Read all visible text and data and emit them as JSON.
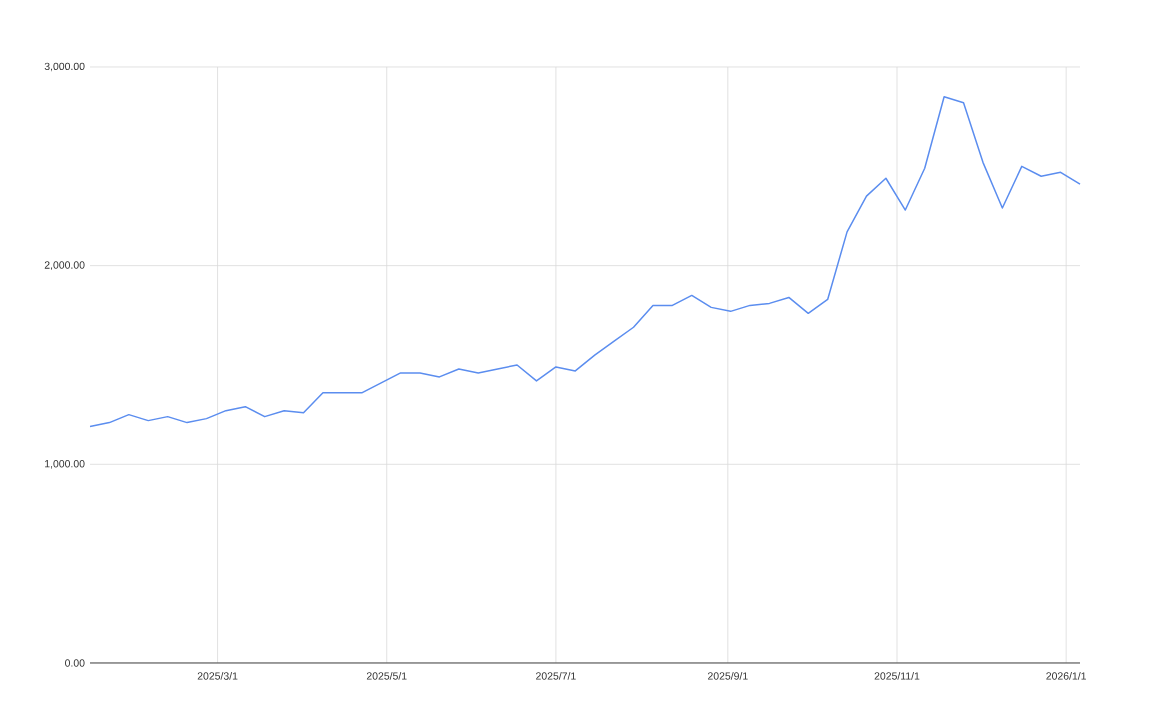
{
  "chart_data": {
    "type": "line",
    "x": [
      "2025-01-14",
      "2025-01-21",
      "2025-01-28",
      "2025-02-04",
      "2025-02-11",
      "2025-02-18",
      "2025-02-25",
      "2025-03-04",
      "2025-03-11",
      "2025-03-18",
      "2025-03-25",
      "2025-04-01",
      "2025-04-08",
      "2025-04-15",
      "2025-04-22",
      "2025-04-29",
      "2025-05-06",
      "2025-05-13",
      "2025-05-20",
      "2025-05-27",
      "2025-06-03",
      "2025-06-10",
      "2025-06-17",
      "2025-06-24",
      "2025-07-01",
      "2025-07-08",
      "2025-07-15",
      "2025-07-22",
      "2025-07-29",
      "2025-08-05",
      "2025-08-12",
      "2025-08-19",
      "2025-08-26",
      "2025-09-02",
      "2025-09-09",
      "2025-09-16",
      "2025-09-23",
      "2025-09-30",
      "2025-10-07",
      "2025-10-14",
      "2025-10-21",
      "2025-10-28",
      "2025-11-04",
      "2025-11-11",
      "2025-11-18",
      "2025-11-25",
      "2025-12-02",
      "2025-12-09",
      "2025-12-16",
      "2025-12-23",
      "2025-12-30",
      "2026-01-06"
    ],
    "series": [
      {
        "color": "#5b8def",
        "values": [
          1190,
          1210,
          1250,
          1220,
          1240,
          1210,
          1230,
          1270,
          1290,
          1240,
          1270,
          1260,
          1360,
          1360,
          1360,
          1410,
          1460,
          1460,
          1440,
          1480,
          1460,
          1480,
          1500,
          1420,
          1490,
          1470,
          1550,
          1620,
          1690,
          1800,
          1800,
          1850,
          1790,
          1770,
          1800,
          1810,
          1840,
          1760,
          1830,
          2170,
          2350,
          2440,
          2280,
          2490,
          2850,
          2820,
          2520,
          2290,
          2500,
          2450,
          2470,
          2410
        ]
      }
    ],
    "xlim": [
      "2025-01-14",
      "2026-01-06"
    ],
    "xticks": [
      {
        "value": "2025-03-01",
        "label": "2025/3/1"
      },
      {
        "value": "2025-05-01",
        "label": "2025/5/1"
      },
      {
        "value": "2025-07-01",
        "label": "2025/7/1"
      },
      {
        "value": "2025-09-01",
        "label": "2025/9/1"
      },
      {
        "value": "2025-11-01",
        "label": "2025/11/1"
      },
      {
        "value": "2026-01-01",
        "label": "2026/1/1"
      }
    ],
    "ylim": [
      0,
      3000
    ],
    "yticks": [
      {
        "value": 0,
        "label": "0.00"
      },
      {
        "value": 1000,
        "label": "1,000.00"
      },
      {
        "value": 2000,
        "label": "2,000.00"
      },
      {
        "value": 3000,
        "label": "3,000.00"
      }
    ],
    "grid": true,
    "marker": "none",
    "line_style": "solid"
  }
}
